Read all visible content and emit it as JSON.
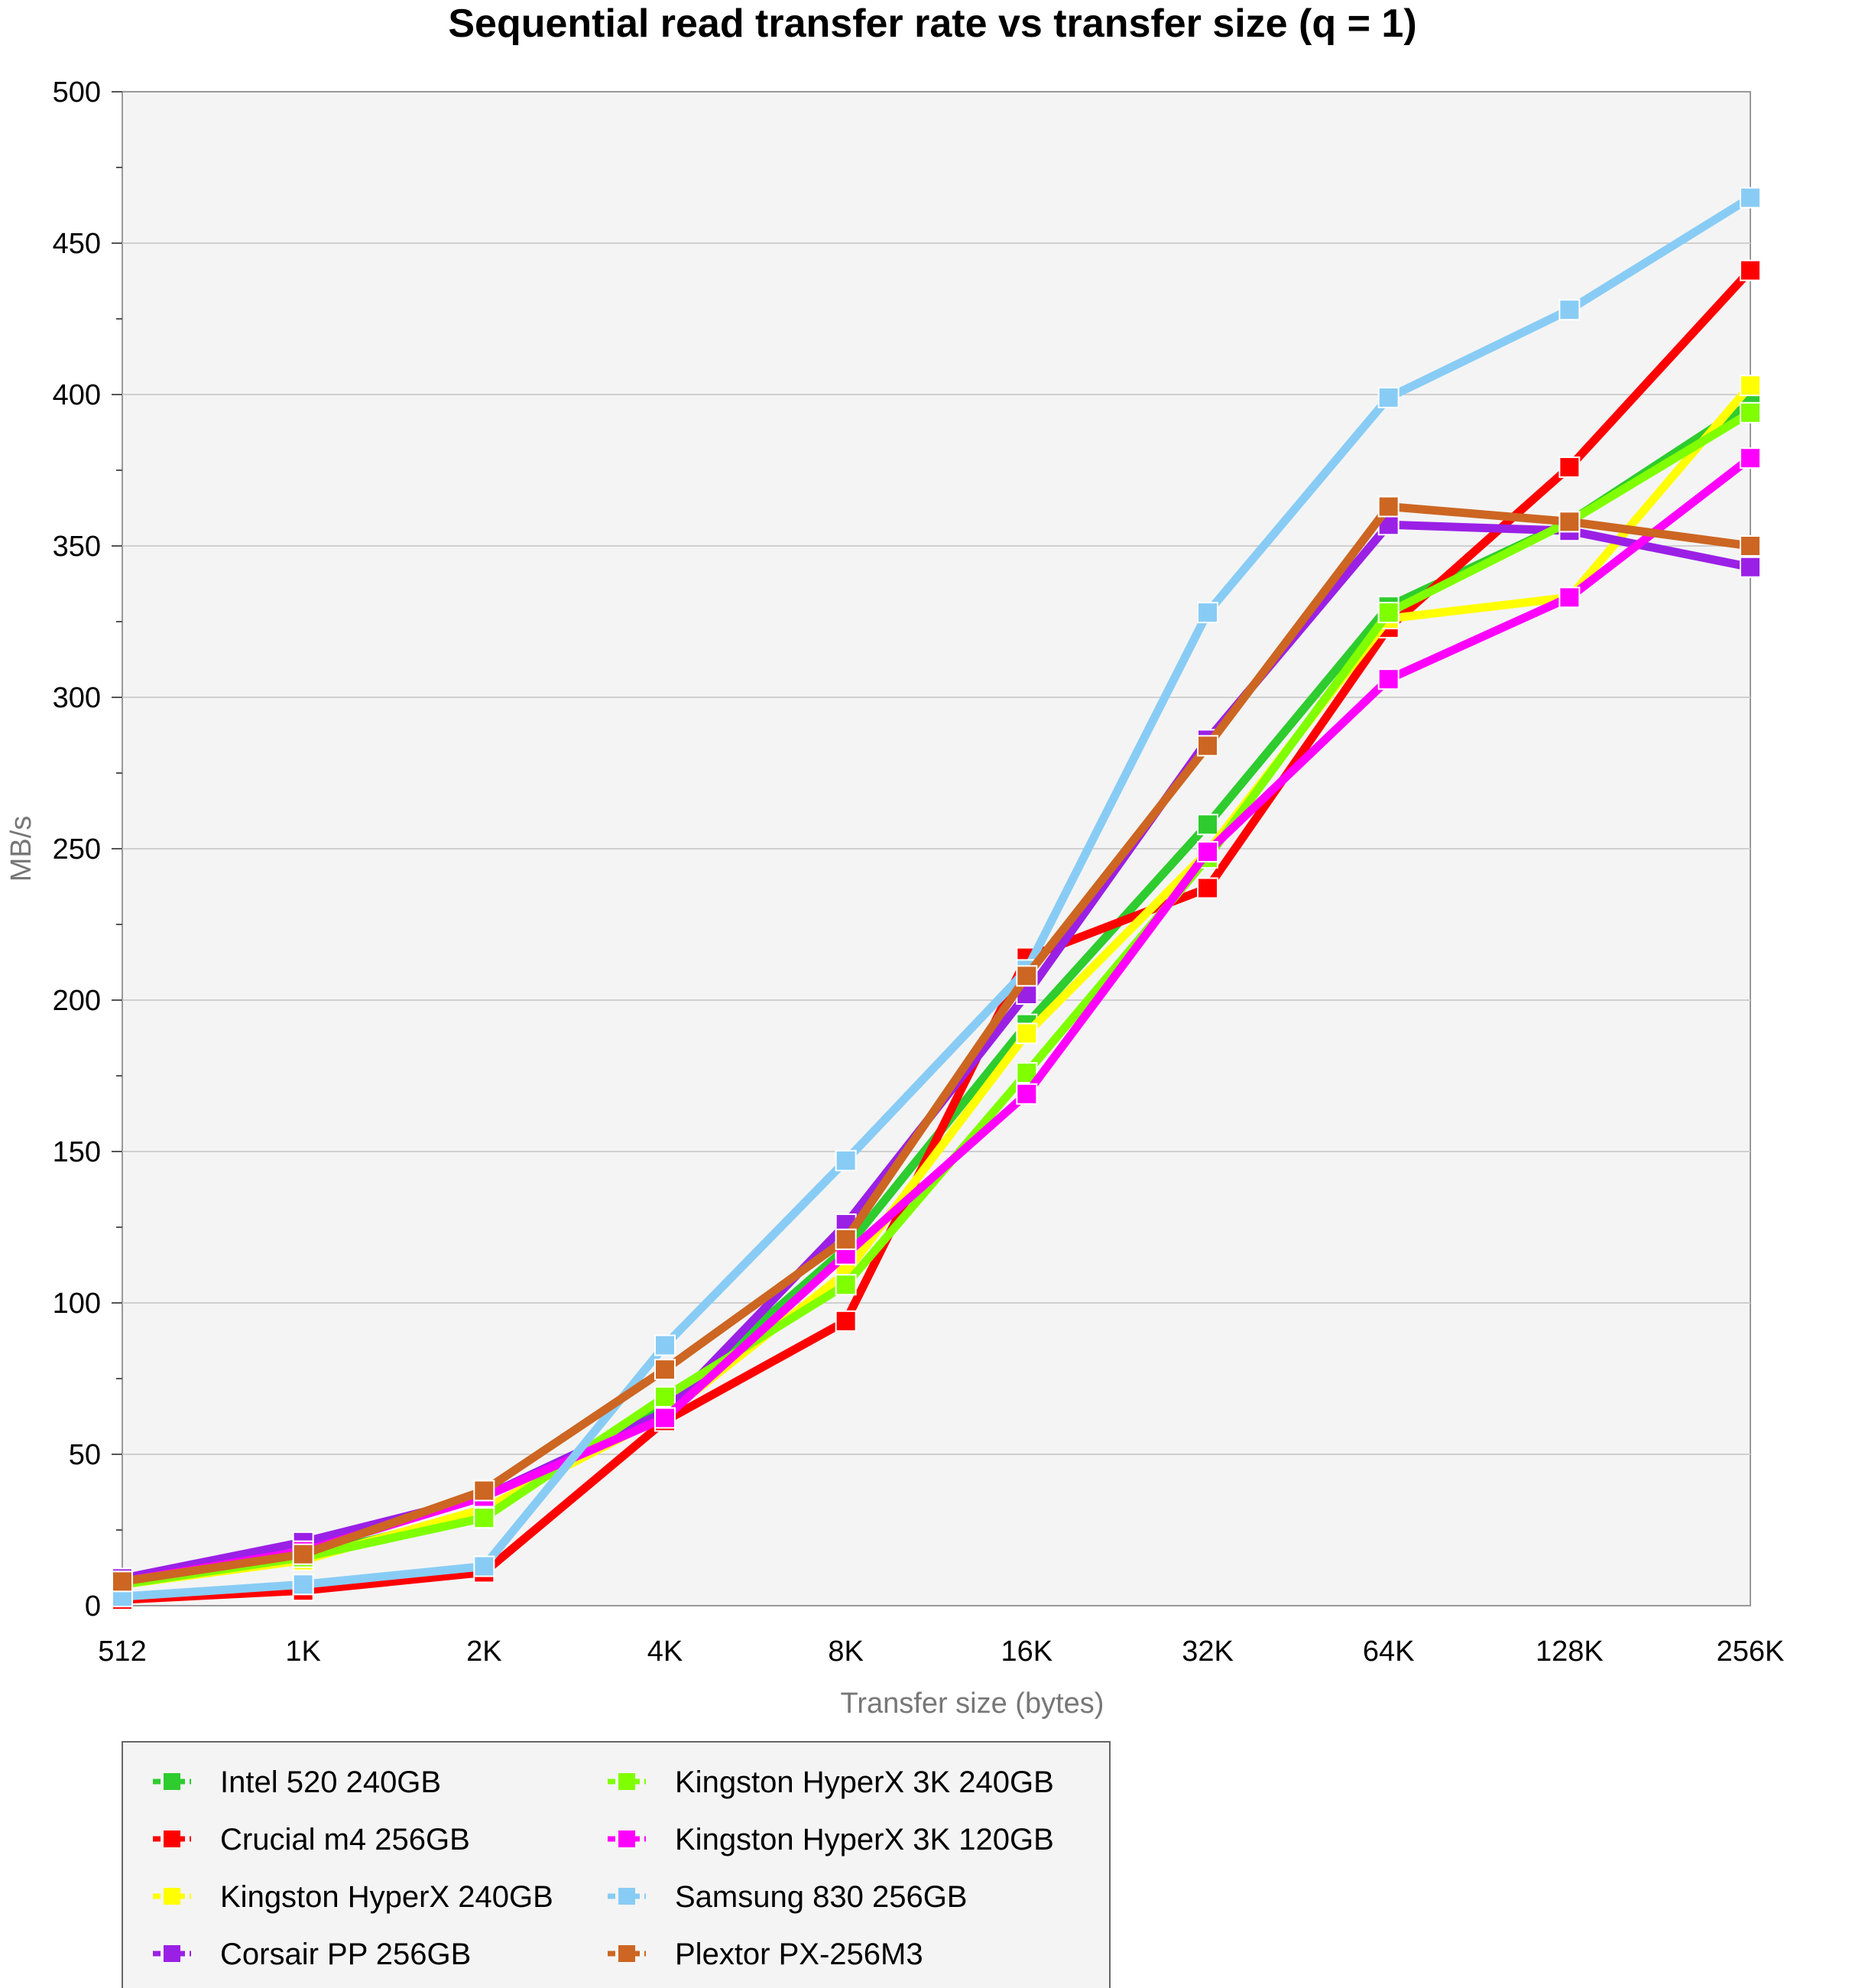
{
  "chart_data": {
    "type": "line",
    "title": "Sequential read transfer rate vs transfer size (q = 1)",
    "xlabel": "Transfer size (bytes)",
    "ylabel": "MB/s",
    "ylim": [
      0,
      500
    ],
    "yticks": [
      0,
      50,
      100,
      150,
      200,
      250,
      300,
      350,
      400,
      450,
      500
    ],
    "categories": [
      "512",
      "1K",
      "2K",
      "4K",
      "8K",
      "16K",
      "32K",
      "64K",
      "128K",
      "256K"
    ],
    "grid": true,
    "legend_placement": "bottom",
    "series": [
      {
        "name": "Intel 520 240GB",
        "color": "#2ecc2e",
        "values": [
          7,
          16,
          31,
          66,
          118,
          192,
          258,
          330,
          358,
          397
        ]
      },
      {
        "name": "Crucial m4 256GB",
        "color": "#ff0000",
        "values": [
          2,
          5,
          11,
          61,
          94,
          214,
          237,
          323,
          376,
          441
        ]
      },
      {
        "name": "Kingston HyperX 240GB",
        "color": "#ffff00",
        "values": [
          7,
          15,
          32,
          63,
          110,
          189,
          249,
          326,
          333,
          403
        ]
      },
      {
        "name": "Corsair PP 256GB",
        "color": "#9b20e6",
        "values": [
          9,
          21,
          36,
          64,
          126,
          202,
          286,
          357,
          355,
          343
        ]
      },
      {
        "name": "Kingston HyperX 3K 240GB",
        "color": "#80ff00",
        "values": [
          7,
          16,
          29,
          69,
          106,
          176,
          247,
          328,
          358,
          394
        ]
      },
      {
        "name": "Kingston HyperX 3K 120GB",
        "color": "#ff00ff",
        "values": [
          8,
          18,
          36,
          62,
          116,
          169,
          249,
          306,
          333,
          379
        ]
      },
      {
        "name": "Samsung 830 256GB",
        "color": "#88ccf5",
        "values": [
          3,
          7,
          13,
          86,
          147,
          210,
          328,
          399,
          428,
          465
        ]
      },
      {
        "name": "Plextor PX-256M3",
        "color": "#cc6622",
        "values": [
          8,
          17,
          38,
          78,
          121,
          208,
          284,
          363,
          358,
          350
        ]
      }
    ]
  }
}
